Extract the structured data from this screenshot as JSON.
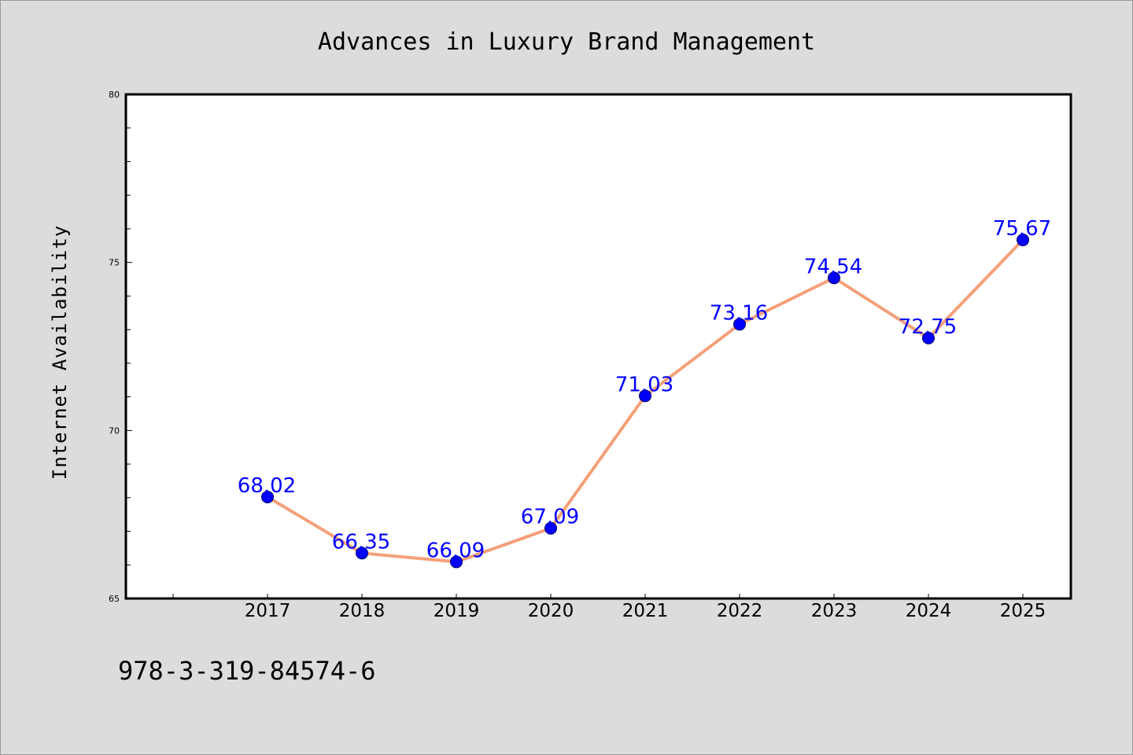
{
  "chart_data": {
    "type": "line",
    "title": "Advances in Luxury Brand Management",
    "xlabel": "",
    "ylabel": "Internet Availability",
    "categories": [
      "2017",
      "2018",
      "2019",
      "2020",
      "2021",
      "2022",
      "2023",
      "2024",
      "2025"
    ],
    "series": [
      {
        "values": [
          68.02,
          66.35,
          66.09,
          67.09,
          71.03,
          73.16,
          74.54,
          72.75,
          75.67
        ],
        "labels": [
          "68.02",
          "66.35",
          "66.09",
          "67.09",
          "71.03",
          "73.16",
          "74.54",
          "72.75",
          "75.67"
        ],
        "line_color": "#f4a07a",
        "marker_color": "#0000ff"
      }
    ],
    "ylim": [
      65,
      80
    ],
    "yticks": [
      "65",
      "70",
      "75",
      "80"
    ],
    "grid": false,
    "legend": "none"
  },
  "footnote": "978-3-319-84574-6",
  "colors": {
    "background": "#dcdcdc",
    "plot_area": "#ffffff",
    "data_label": "#0000ff"
  }
}
